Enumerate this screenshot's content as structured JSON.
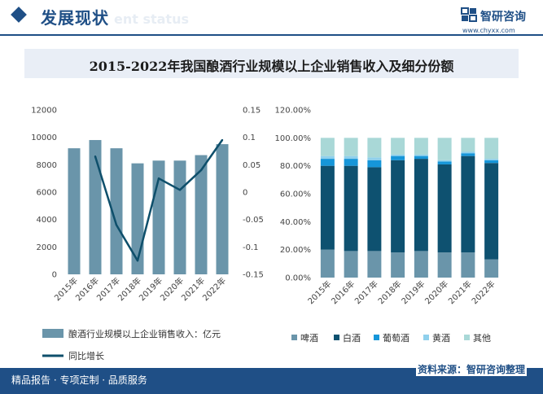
{
  "header": {
    "section_title": "发展现状",
    "section_title_en": "ent status",
    "logo_text": "智研咨询",
    "logo_url": "www.chyxx.com"
  },
  "footer": {
    "left_text": "精品报告 · 专项定制 · 品质服务",
    "source_text": "资料来源：智研咨询整理"
  },
  "colors": {
    "brand": "#1f4f86",
    "bar": "#6a95aa",
    "line": "#0e4f6b"
  },
  "chart_data": [
    {
      "type": "bar",
      "title": "2015-2022年我国酿酒行业规模以上企业销售收入及细分份额",
      "categories": [
        "2015年",
        "2016年",
        "2017年",
        "2018年",
        "2019年",
        "2020年",
        "2021年",
        "2022年"
      ],
      "series": [
        {
          "name": "酿酒行业规模以上企业销售收入：亿元",
          "axis": "left",
          "kind": "bar",
          "values": [
            9200,
            9800,
            9200,
            8100,
            8300,
            8300,
            8700,
            9500
          ]
        },
        {
          "name": "同比增长",
          "axis": "right",
          "kind": "line",
          "values": [
            null,
            0.065,
            -0.06,
            -0.125,
            0.025,
            0.004,
            0.04,
            0.095
          ]
        }
      ],
      "ylim": [
        0,
        12000
      ],
      "y_ticks": [
        "0",
        "2000",
        "4000",
        "6000",
        "8000",
        "10000",
        "12000"
      ],
      "y2lim": [
        -0.15,
        0.15
      ],
      "y2_ticks": [
        "-0.15",
        "-0.1",
        "-0.05",
        "0",
        "0.05",
        "0.1",
        "0.15"
      ],
      "legend_position": "bottom"
    },
    {
      "type": "bar",
      "stacked": true,
      "categories": [
        "2015年",
        "2016年",
        "2017年",
        "2018年",
        "2019年",
        "2020年",
        "2021年",
        "2022年"
      ],
      "series": [
        {
          "name": "啤酒",
          "color": "#6a95aa",
          "values": [
            20,
            19,
            19,
            18,
            19,
            18,
            18,
            13
          ]
        },
        {
          "name": "白酒",
          "color": "#0e5170",
          "values": [
            60,
            61,
            60,
            66,
            66,
            63,
            69,
            69
          ]
        },
        {
          "name": "葡萄酒",
          "color": "#1696d9",
          "values": [
            5,
            5,
            5,
            3,
            2,
            2,
            2,
            2
          ]
        },
        {
          "name": "黄酒",
          "color": "#8fd0ec",
          "values": [
            2,
            2,
            2,
            1,
            1,
            1,
            1,
            1
          ]
        },
        {
          "name": "其他",
          "color": "#a9d8d7",
          "values": [
            13,
            13,
            14,
            12,
            12,
            16,
            10,
            15
          ]
        }
      ],
      "ylim": [
        0,
        120
      ],
      "y_ticks": [
        "0.00%",
        "20.00%",
        "40.00%",
        "60.00%",
        "80.00%",
        "100.00%",
        "120.00%"
      ],
      "legend_position": "bottom"
    }
  ]
}
